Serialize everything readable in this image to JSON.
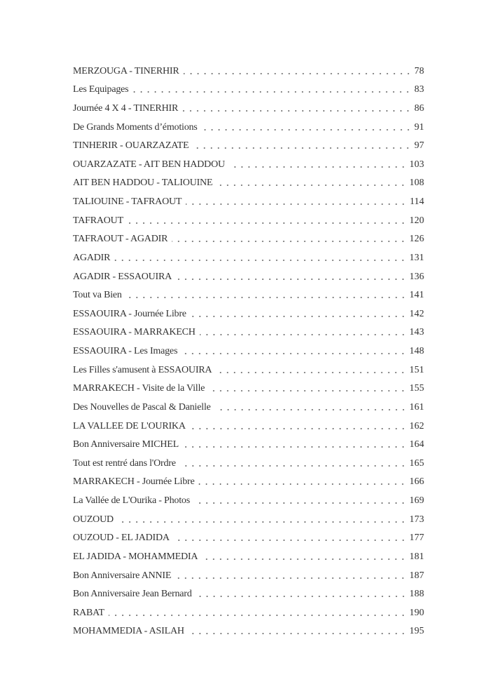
{
  "toc": {
    "entries": [
      {
        "title": "MERZOUGA - TINERHIR",
        "page": "78"
      },
      {
        "title": "Les Equipages",
        "page": "83"
      },
      {
        "title": "Journée 4 X 4 - TINERHIR",
        "page": "86"
      },
      {
        "title": "De Grands Moments d’émotions",
        "page": "91"
      },
      {
        "title": "TINHERIR - OUARZAZATE",
        "page": "97"
      },
      {
        "title": "OUARZAZATE - AIT BEN HADDOU",
        "page": "103"
      },
      {
        "title": "AIT BEN HADDOU - TALIOUINE",
        "page": "108"
      },
      {
        "title": "TALIOUINE - TAFRAOUT",
        "page": "114"
      },
      {
        "title": "TAFRAOUT",
        "page": "120"
      },
      {
        "title": "TAFRAOUT - AGADIR",
        "page": "126"
      },
      {
        "title": "AGADIR",
        "page": "131"
      },
      {
        "title": "AGADIR - ESSAOUIRA",
        "page": "136"
      },
      {
        "title": "Tout va Bien",
        "page": "141"
      },
      {
        "title": "ESSAOUIRA - Journée Libre",
        "page": "142"
      },
      {
        "title": "ESSAOUIRA - MARRAKECH",
        "page": "143"
      },
      {
        "title": "ESSAOUIRA - Les Images",
        "page": "148"
      },
      {
        "title": "Les Filles s'amusent à ESSAOUIRA",
        "page": "151"
      },
      {
        "title": "MARRAKECH - Visite de la Ville",
        "page": "155"
      },
      {
        "title": "Des Nouvelles de Pascal & Danielle",
        "page": "161"
      },
      {
        "title": "LA VALLEE DE L'OURIKA",
        "page": "162"
      },
      {
        "title": "Bon Anniversaire MICHEL",
        "page": "164"
      },
      {
        "title": "Tout est rentré dans l'Ordre",
        "page": "165"
      },
      {
        "title": "MARRAKECH - Journée Libre",
        "page": "166"
      },
      {
        "title": "La Vallée de L'Ourika - Photos",
        "page": "169"
      },
      {
        "title": "OUZOUD",
        "page": "173"
      },
      {
        "title": "OUZOUD - EL JADIDA",
        "page": "177"
      },
      {
        "title": "EL JADIDA - MOHAMMEDIA",
        "page": "181"
      },
      {
        "title": "Bon Anniversaire ANNIE",
        "page": "187"
      },
      {
        "title": "Bon Anniversaire Jean Bernard",
        "page": "188"
      },
      {
        "title": "RABAT",
        "page": "190"
      },
      {
        "title": "MOHAMMEDIA - ASILAH",
        "page": "195"
      }
    ]
  }
}
